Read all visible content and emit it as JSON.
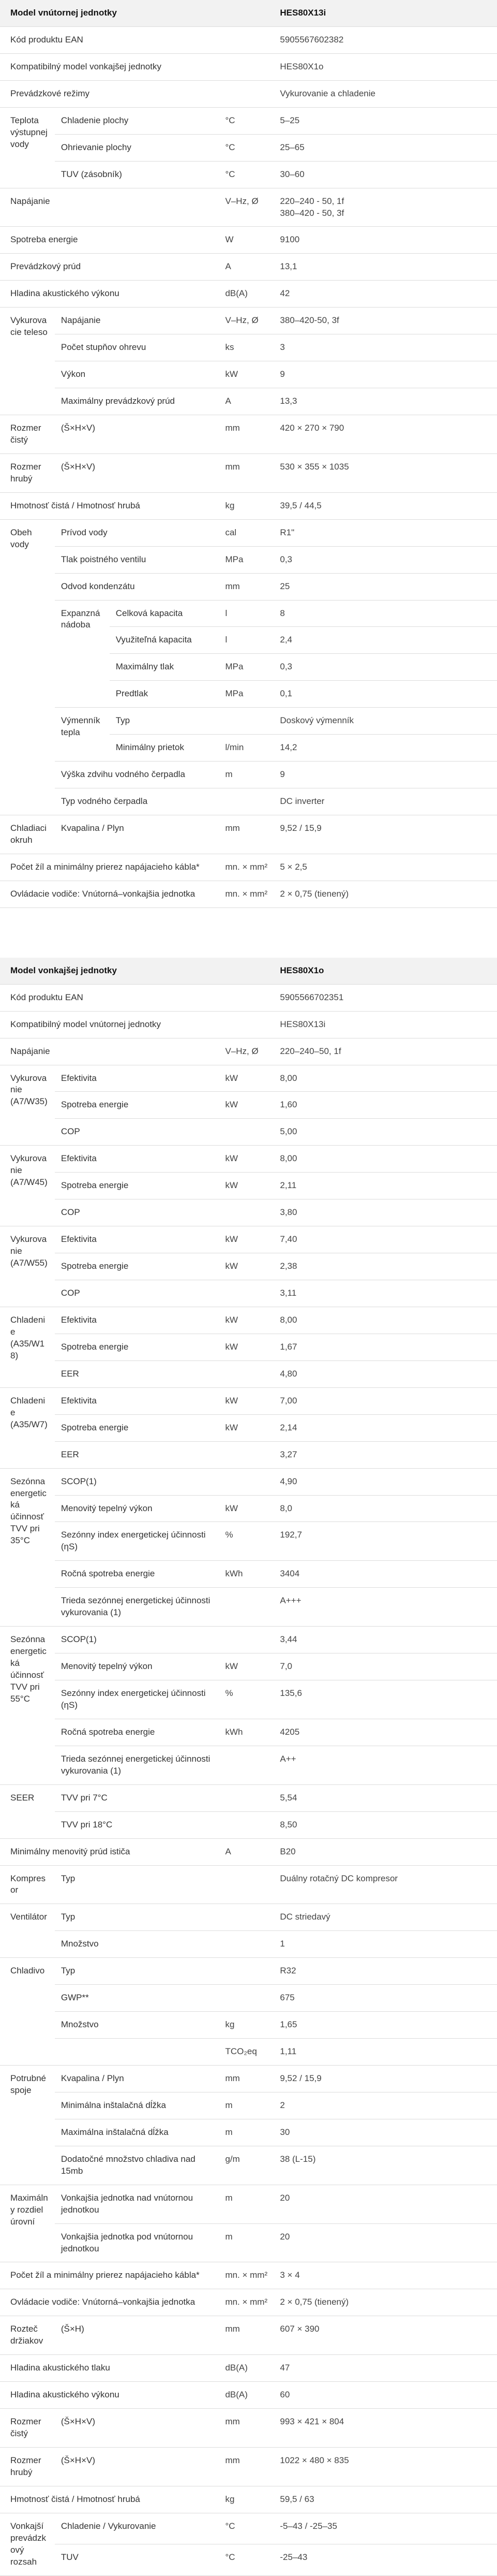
{
  "indoor": {
    "header": {
      "label": "Model vnútornej jednotky",
      "value": "HES80X13i"
    },
    "rows": [
      {
        "cells": [
          "Kód produktu EAN",
          "",
          "",
          "5905567602382"
        ],
        "spans": [
          5,
          0,
          0,
          1
        ]
      },
      {
        "cells": [
          "Kompatibilný model vonkajšej jednotky",
          "HES80X1o"
        ],
        "spans": [
          5,
          1
        ]
      },
      {
        "cells": [
          "Prevádzkové režimy",
          "Vykurovanie a chladenie"
        ],
        "spans": [
          5,
          1
        ]
      },
      {
        "group": "Teplota výstupnej vody",
        "sub": [
          {
            "label": "Chladenie plochy",
            "unit": "°C",
            "value": "5–25"
          },
          {
            "label": "Ohrievanie plochy",
            "unit": "°C",
            "value": "25–65"
          },
          {
            "label": "TUV (zásobník)",
            "unit": "°C",
            "value": "30–60"
          }
        ]
      },
      {
        "label": "Napájanie",
        "unit": "V–Hz, Ø",
        "value": "220–240 - 50, 1f\n380–420 - 50, 3f"
      },
      {
        "label": "Spotreba energie",
        "unit": "W",
        "value": "9100"
      },
      {
        "label": "Prevádzkový prúd",
        "unit": "A",
        "value": "13,1"
      },
      {
        "label": "Hladina akustického výkonu",
        "unit": "dB(A)",
        "value": "42"
      },
      {
        "group": "Vykurovacie teleso",
        "sub": [
          {
            "label": "Napájanie",
            "unit": "V–Hz, Ø",
            "value": "380–420-50, 3f"
          },
          {
            "label": "Počet stupňov ohrevu",
            "unit": "ks",
            "value": "3"
          },
          {
            "label": "Výkon",
            "unit": "kW",
            "value": "9"
          },
          {
            "label": "Maximálny prevádzkový prúd",
            "unit": "A",
            "value": "13,3"
          }
        ]
      },
      {
        "label": "Rozmer čistý",
        "sub2": "(Š×H×V)",
        "unit": "mm",
        "value": "420 × 270 × 790"
      },
      {
        "label": "Rozmer hrubý",
        "sub2": "(Š×H×V)",
        "unit": "mm",
        "value": "530 × 355 × 1035"
      },
      {
        "label": "Hmotnosť čistá / Hmotnosť hrubá",
        "unit": "kg",
        "value": "39,5 / 44,5"
      },
      {
        "group": "Obeh vody",
        "sub": [
          {
            "label": "Prívod vody",
            "unit": "cal",
            "value": "R1\""
          },
          {
            "label": "Tlak poistného ventilu",
            "unit": "MPa",
            "value": "0,3"
          },
          {
            "label": "Odvod kondenzátu",
            "unit": "mm",
            "value": "25"
          },
          {
            "label": "Expanzná nádoba",
            "subsub": [
              {
                "label": "Celková kapacita",
                "unit": "l",
                "value": "8"
              },
              {
                "label": "Využiteľná kapacita",
                "unit": "l",
                "value": "2,4"
              },
              {
                "label": "Maximálny tlak",
                "unit": "MPa",
                "value": "0,3"
              },
              {
                "label": "Predtlak",
                "unit": "MPa",
                "value": "0,1"
              }
            ]
          },
          {
            "label": "Výmenník tepla",
            "subsub": [
              {
                "label": "Typ",
                "unit": "",
                "value": "Doskový výmenník"
              },
              {
                "label": "Minimálny prietok",
                "unit": "l/min",
                "value": "14,2"
              }
            ]
          },
          {
            "label": "Výška zdvihu vodného čerpadla",
            "unit": "m",
            "value": "9"
          },
          {
            "label": "Typ vodného čerpadla",
            "unit": "",
            "value": "DC inverter"
          }
        ]
      },
      {
        "label": "Chladiaci okruh",
        "sub2": "Kvapalina / Plyn",
        "unit": "mm",
        "value": "9,52 / 15,9"
      },
      {
        "label": "Počet žíl a minimálny prierez napájacieho kábla*",
        "unit": "mn. × mm²",
        "value": "5 × 2,5"
      },
      {
        "label": "Ovládacie vodiče: Vnútorná–vonkajšia jednotka",
        "unit": "mn. × mm²",
        "value": "2 × 0,75 (tienený)"
      }
    ]
  },
  "outdoor": {
    "header": {
      "label": "Model vonkajšej jednotky",
      "value": "HES80X1o"
    },
    "simple_top": [
      {
        "label": "Kód produktu EAN",
        "value": "5905566702351"
      },
      {
        "label": "Kompatibilný model vnútornej jednotky",
        "value": "HES80X13i"
      },
      {
        "label": "Napájanie",
        "unit": "V–Hz, Ø",
        "value": "220–240–50, 1f"
      }
    ],
    "groups": [
      {
        "group": "Vykurovanie (A7/W35)",
        "sub": [
          {
            "label": "Efektivita",
            "unit": "kW",
            "value": "8,00"
          },
          {
            "label": "Spotreba energie",
            "unit": "kW",
            "value": "1,60"
          },
          {
            "label": "COP",
            "unit": "",
            "value": "5,00"
          }
        ]
      },
      {
        "group": "Vykurovanie (A7/W45)",
        "sub": [
          {
            "label": "Efektivita",
            "unit": "kW",
            "value": "8,00"
          },
          {
            "label": "Spotreba energie",
            "unit": "kW",
            "value": "2,11"
          },
          {
            "label": "COP",
            "unit": "",
            "value": "3,80"
          }
        ]
      },
      {
        "group": "Vykurovanie (A7/W55)",
        "sub": [
          {
            "label": "Efektivita",
            "unit": "kW",
            "value": "7,40"
          },
          {
            "label": "Spotreba energie",
            "unit": "kW",
            "value": "2,38"
          },
          {
            "label": "COP",
            "unit": "",
            "value": "3,11"
          }
        ]
      },
      {
        "group": "Chladenie (A35/W18)",
        "sub": [
          {
            "label": "Efektivita",
            "unit": "kW",
            "value": "8,00"
          },
          {
            "label": "Spotreba energie",
            "unit": "kW",
            "value": "1,67"
          },
          {
            "label": "EER",
            "unit": "",
            "value": "4,80"
          }
        ]
      },
      {
        "group": "Chladenie (A35/W7)",
        "sub": [
          {
            "label": "Efektivita",
            "unit": "kW",
            "value": "7,00"
          },
          {
            "label": "Spotreba energie",
            "unit": "kW",
            "value": "2,14"
          },
          {
            "label": "EER",
            "unit": "",
            "value": "3,27"
          }
        ]
      },
      {
        "group": "Sezónna energetická účinnosť TVV pri 35°C",
        "sub": [
          {
            "label": "SCOP(1)",
            "unit": "",
            "value": "4,90"
          },
          {
            "label": "Menovitý tepelný výkon",
            "unit": "kW",
            "value": "8,0"
          },
          {
            "label": "Sezónny index energetickej účinnosti (ηS)",
            "unit": "%",
            "value": "192,7"
          },
          {
            "label": "Ročná spotreba energie",
            "unit": "kWh",
            "value": "3404"
          },
          {
            "label": "Trieda sezónnej energetickej účinnosti vykurovania (1)",
            "unit": "",
            "value": "A+++"
          }
        ]
      },
      {
        "group": "Sezónna energetická účinnosť TVV pri 55°C",
        "sub": [
          {
            "label": "SCOP(1)",
            "unit": "",
            "value": "3,44"
          },
          {
            "label": "Menovitý tepelný výkon",
            "unit": "kW",
            "value": "7,0"
          },
          {
            "label": "Sezónny index energetickej účinnosti (ηS)",
            "unit": "%",
            "value": "135,6"
          },
          {
            "label": "Ročná spotreba energie",
            "unit": "kWh",
            "value": "4205"
          },
          {
            "label": "Trieda sezónnej energetickej účinnosti vykurovania (1)",
            "unit": "",
            "value": "A++"
          }
        ]
      },
      {
        "group": "SEER",
        "sub": [
          {
            "label": "TVV pri 7°C",
            "unit": "",
            "value": "5,54"
          },
          {
            "label": "TVV pri 18°C",
            "unit": "",
            "value": "8,50"
          }
        ]
      }
    ],
    "mid": [
      {
        "label": "Minimálny menovitý prúd ističa",
        "unit": "A",
        "value": "B20"
      },
      {
        "label": "Kompresor",
        "sub2": "Typ",
        "unit": "",
        "value": "Duálny rotačný DC kompresor"
      }
    ],
    "ventilator": {
      "group": "Ventilátor",
      "sub": [
        {
          "label": "Typ",
          "unit": "",
          "value": "DC striedavý"
        },
        {
          "label": "Množstvo",
          "unit": "",
          "value": "1"
        }
      ]
    },
    "chladivo": {
      "group": "Chladivo",
      "sub": [
        {
          "label": "Typ",
          "unit": "",
          "value": "R32"
        },
        {
          "label": "GWP**",
          "unit": "",
          "value": "675"
        },
        {
          "label": "Množstvo",
          "unit": "kg",
          "value": "1,65"
        },
        {
          "label": "",
          "unit": "TCO₂eq",
          "value": "1,11"
        }
      ]
    },
    "spoje": {
      "group": "Potrubné spoje",
      "sub": [
        {
          "label": "Kvapalina / Plyn",
          "unit": "mm",
          "value": "9,52 / 15,9"
        },
        {
          "label": "Minimálna inštalačná dĺžka",
          "unit": "m",
          "value": "2"
        },
        {
          "label": "Maximálna inštalačná dĺžka",
          "unit": "m",
          "value": "30"
        },
        {
          "label": "Dodatočné množstvo chladiva nad 15mb",
          "unit": "g/m",
          "value": "38 (L-15)"
        }
      ]
    },
    "rozdiel": {
      "group": "Maximálny rozdiel úrovní",
      "sub": [
        {
          "label": "Vonkajšia jednotka nad vnútornou jednotkou",
          "unit": "m",
          "value": "20"
        },
        {
          "label": "Vonkajšia jednotka pod vnútornou jednotkou",
          "unit": "m",
          "value": "20"
        }
      ]
    },
    "bottom": [
      {
        "label": "Počet žíl a minimálny prierez napájacieho kábla*",
        "unit": "mn. × mm²",
        "value": "3 × 4"
      },
      {
        "label": "Ovládacie vodiče: Vnútorná–vonkajšia jednotka",
        "unit": "mn. × mm²",
        "value": "2 × 0,75 (tienený)"
      },
      {
        "label": "Rozteč držiakov",
        "sub2": "(Š×H)",
        "unit": "mm",
        "value": "607 × 390"
      },
      {
        "label": "Hladina akustického tlaku",
        "unit": "dB(A)",
        "value": "47"
      },
      {
        "label": "Hladina akustického výkonu",
        "unit": "dB(A)",
        "value": "60"
      },
      {
        "label": "Rozmer čistý",
        "sub2": "(Š×H×V)",
        "unit": "mm",
        "value": "993 × 421 × 804"
      },
      {
        "label": "Rozmer hrubý",
        "sub2": "(Š×H×V)",
        "unit": "mm",
        "value": "1022 × 480 × 835"
      },
      {
        "label": "Hmotnosť čistá / Hmotnosť hrubá",
        "unit": "kg",
        "value": "59,5 / 63"
      }
    ],
    "rozsah": {
      "group": "Vonkajší prevádzkový rozsah",
      "sub": [
        {
          "label": "Chladenie / Vykurovanie",
          "unit": "°C",
          "value": "-5–43 / -25–35"
        },
        {
          "label": "TUV",
          "unit": "°C",
          "value": "-25–43"
        }
      ]
    }
  }
}
